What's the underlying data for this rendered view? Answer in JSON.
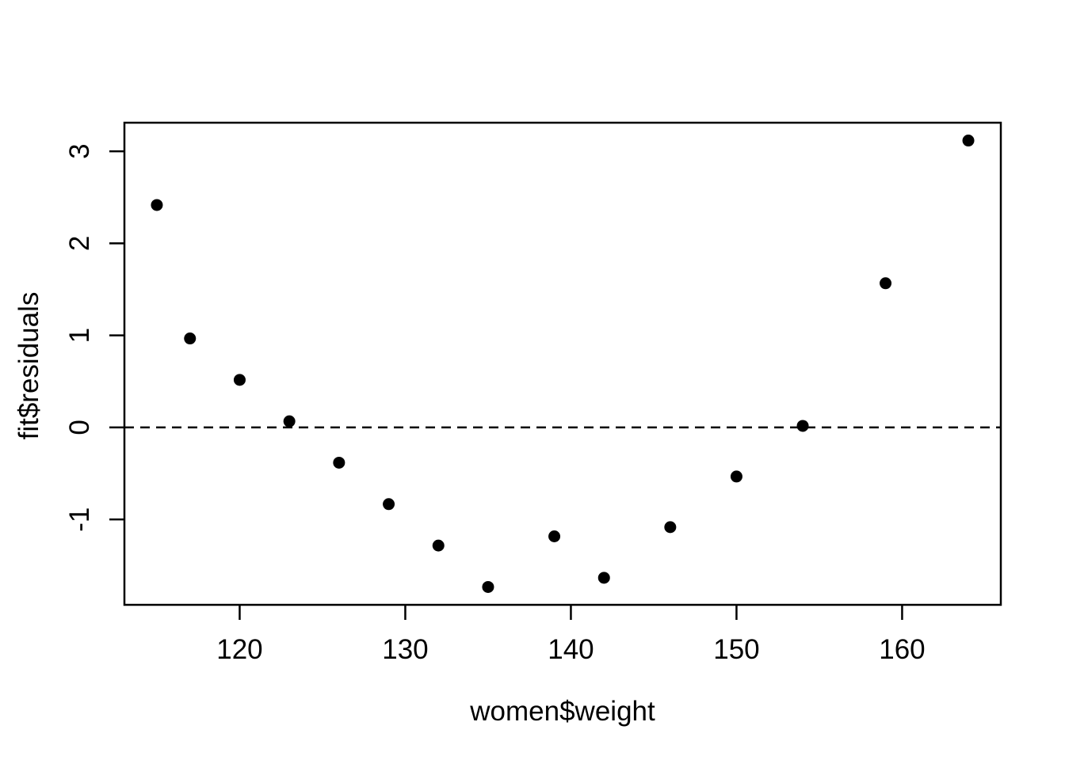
{
  "figure": {
    "background_color": "#ffffff",
    "foreground_color": "#000000"
  },
  "chart_data": {
    "type": "scatter",
    "title": "",
    "xlabel": "women$weight",
    "ylabel": "fit$residuals",
    "x": [
      115,
      117,
      120,
      123,
      126,
      129,
      132,
      135,
      139,
      142,
      146,
      150,
      154,
      159,
      164
    ],
    "y": [
      2.4167,
      0.9667,
      0.5167,
      0.0667,
      -0.3833,
      -0.8333,
      -1.2833,
      -1.7333,
      -1.1833,
      -1.6333,
      -1.0833,
      -0.5333,
      0.0167,
      1.5667,
      3.1167
    ],
    "xlim": [
      113.04,
      165.96
    ],
    "ylim": [
      -1.9273,
      3.3107
    ],
    "x_ticks": [
      120,
      130,
      140,
      150,
      160
    ],
    "y_ticks": [
      -1,
      0,
      1,
      2,
      3
    ],
    "grid": false,
    "legend": false,
    "reference_line": {
      "y": 0,
      "style": "dashed",
      "color": "#000000"
    },
    "point_style": {
      "shape": "filled-circle",
      "color": "#000000",
      "radius_px": 7.5
    }
  }
}
